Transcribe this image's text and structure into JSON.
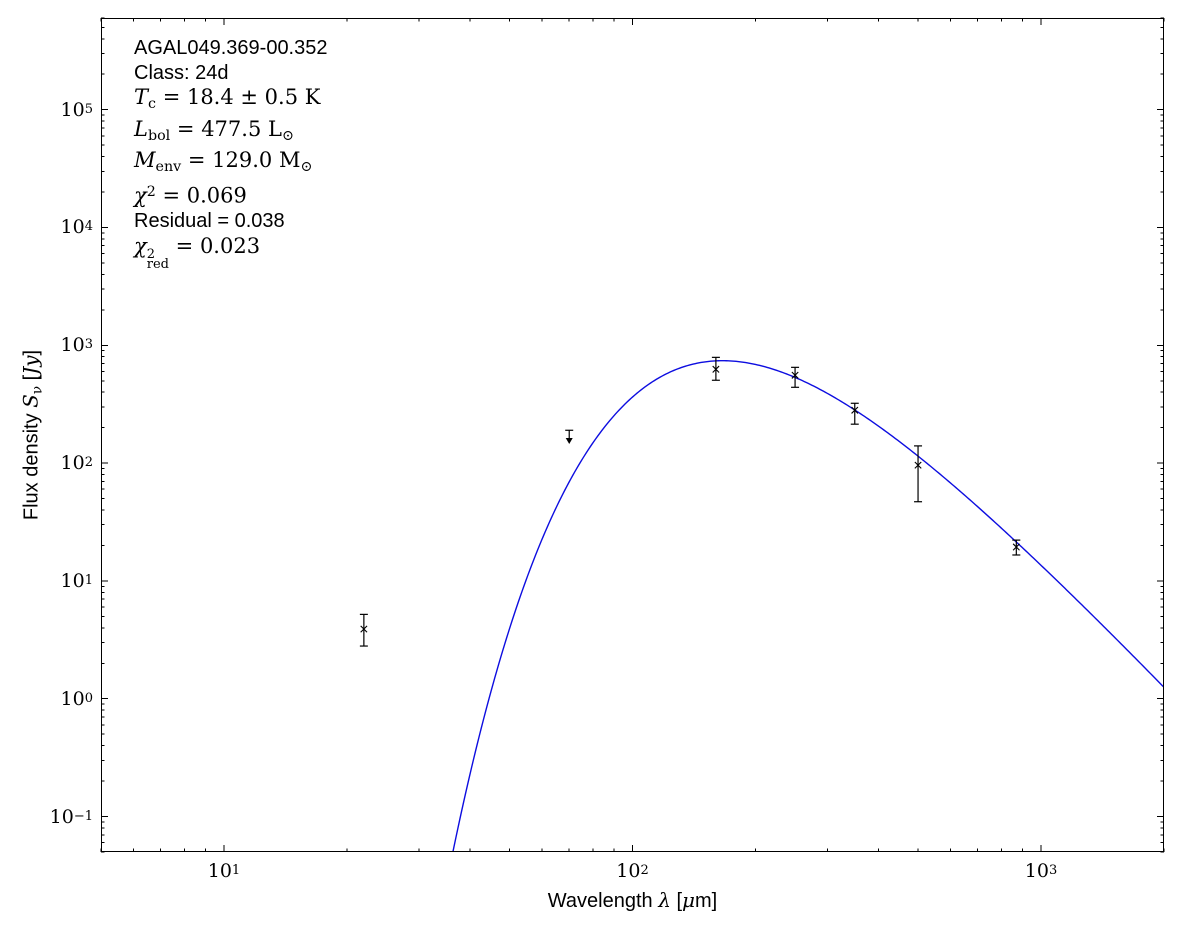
{
  "figure": {
    "background": "#ffffff",
    "frame_color": "#000000",
    "annotation": {
      "lines": [
        {
          "name": "source-name",
          "kind": "sans",
          "segments": [
            {
              "t": "AGAL049.369-00.352",
              "s": "sans"
            }
          ]
        },
        {
          "name": "class",
          "kind": "sans",
          "segments": [
            {
              "t": "Class: 24d",
              "s": "sans"
            }
          ]
        },
        {
          "name": "dust-temperature",
          "kind": "math",
          "segments": [
            {
              "t": "T",
              "s": "it"
            },
            {
              "t": "c",
              "s": "sub"
            },
            {
              "t": " = 18.4 ± 0.5 K",
              "s": "rm"
            }
          ]
        },
        {
          "name": "bolometric-luminosity",
          "kind": "math",
          "segments": [
            {
              "t": "L",
              "s": "it"
            },
            {
              "t": "bol",
              "s": "sub"
            },
            {
              "t": " = 477.5 L",
              "s": "rm"
            },
            {
              "t": "⊙",
              "s": "sub"
            }
          ]
        },
        {
          "name": "envelope-mass",
          "kind": "math",
          "segments": [
            {
              "t": "M",
              "s": "it"
            },
            {
              "t": "env",
              "s": "sub"
            },
            {
              "t": " = 129.0 M",
              "s": "rm"
            },
            {
              "t": "⊙",
              "s": "sub"
            }
          ]
        },
        {
          "name": "chi-squared",
          "kind": "math",
          "segments": [
            {
              "t": "χ",
              "s": "it"
            },
            {
              "t": "2",
              "s": "sup"
            },
            {
              "t": " = 0.069",
              "s": "rm"
            }
          ]
        },
        {
          "name": "residual",
          "kind": "sans",
          "segments": [
            {
              "t": "Residual = 0.038",
              "s": "sans"
            }
          ]
        },
        {
          "name": "chi-squared-reduced",
          "kind": "math",
          "segments": [
            {
              "t": "χ",
              "s": "it"
            },
            {
              "t": "2|red",
              "s": "supsub"
            },
            {
              "t": " = 0.023",
              "s": "rm"
            }
          ]
        }
      ]
    }
  },
  "chart_data": {
    "type": "line",
    "title": "",
    "xlabel": "Wavelength λ [μm]",
    "ylabel": "Flux density Sν [Jy]",
    "xlabel_segments": [
      {
        "t": "Wavelength ",
        "s": "sans"
      },
      {
        "t": "λ",
        "s": "it"
      },
      {
        "t": " [",
        "s": "sans"
      },
      {
        "t": "μ",
        "s": "it"
      },
      {
        "t": "m]",
        "s": "sans"
      }
    ],
    "ylabel_segments": [
      {
        "t": "Flux density ",
        "s": "sans"
      },
      {
        "t": "S",
        "s": "it"
      },
      {
        "t": "ν",
        "s": "sub"
      },
      {
        "t": " [",
        "s": "sans"
      },
      {
        "t": "Jy",
        "s": "it"
      },
      {
        "t": "]",
        "s": "sans"
      }
    ],
    "x_axis": {
      "scale": "log",
      "min": 5,
      "max": 2000,
      "unit": "um",
      "major_ticks": [
        10,
        100,
        1000
      ],
      "tick_labels": [
        {
          "base": "10",
          "exp": "1"
        },
        {
          "base": "10",
          "exp": "2"
        },
        {
          "base": "10",
          "exp": "3"
        }
      ]
    },
    "y_axis": {
      "scale": "log",
      "min": 0.05,
      "max": 600000,
      "unit": "Jy",
      "major_ticks": [
        100000,
        10000,
        1000,
        100,
        10,
        1,
        0.1
      ],
      "tick_labels": [
        {
          "base": "10",
          "exp": "5"
        },
        {
          "base": "10",
          "exp": "4"
        },
        {
          "base": "10",
          "exp": "3"
        },
        {
          "base": "10",
          "exp": "2"
        },
        {
          "base": "10",
          "exp": "1"
        },
        {
          "base": "10",
          "exp": "0"
        },
        {
          "base": "10",
          "exp": "−1"
        }
      ]
    },
    "grid": false,
    "legend": "none",
    "series": [
      {
        "name": "greybody-fit-curve",
        "type": "model-curve",
        "color": "#0d0de0",
        "model": "modified_blackbody",
        "T_K": 18.4,
        "beta": 1.75,
        "peak_wavelength_um": 166,
        "peak_flux_jy": 740,
        "wavelength_range_um": [
          20,
          2000
        ]
      },
      {
        "name": "photometry-points",
        "type": "scatter",
        "color": "#000000",
        "marker": "x",
        "points": [
          {
            "wavelength_um": 22,
            "flux_jy": 3.9,
            "flux_lo_jy": 2.8,
            "flux_hi_jy": 5.2
          },
          {
            "wavelength_um": 160,
            "flux_jy": 626,
            "flux_lo_jy": 505,
            "flux_hi_jy": 790
          },
          {
            "wavelength_um": 250,
            "flux_jy": 557,
            "flux_lo_jy": 440,
            "flux_hi_jy": 650
          },
          {
            "wavelength_um": 350,
            "flux_jy": 281,
            "flux_lo_jy": 214,
            "flux_hi_jy": 322
          },
          {
            "wavelength_um": 500,
            "flux_jy": 96,
            "flux_lo_jy": 47,
            "flux_hi_jy": 140
          },
          {
            "wavelength_um": 870,
            "flux_jy": 19.4,
            "flux_lo_jy": 16.6,
            "flux_hi_jy": 22.2
          }
        ]
      },
      {
        "name": "upper-limit-point",
        "type": "upper-limit",
        "color": "#000000",
        "points": [
          {
            "wavelength_um": 70,
            "flux_jy": 190,
            "arrow_to_jy": 148
          }
        ]
      }
    ]
  }
}
